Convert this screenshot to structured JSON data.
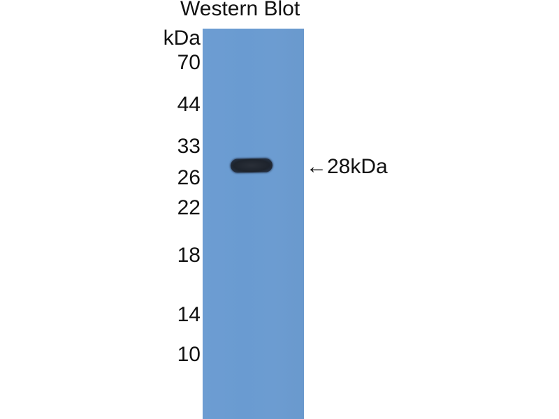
{
  "title": "Western Blot",
  "unit_label": "kDa",
  "markers": [
    "70",
    "44",
    "33",
    "26",
    "22",
    "18",
    "14",
    "10"
  ],
  "band_annotation": "←28kDa",
  "colors": {
    "membrane": "#6a9bd1",
    "band": "#1d232c"
  }
}
